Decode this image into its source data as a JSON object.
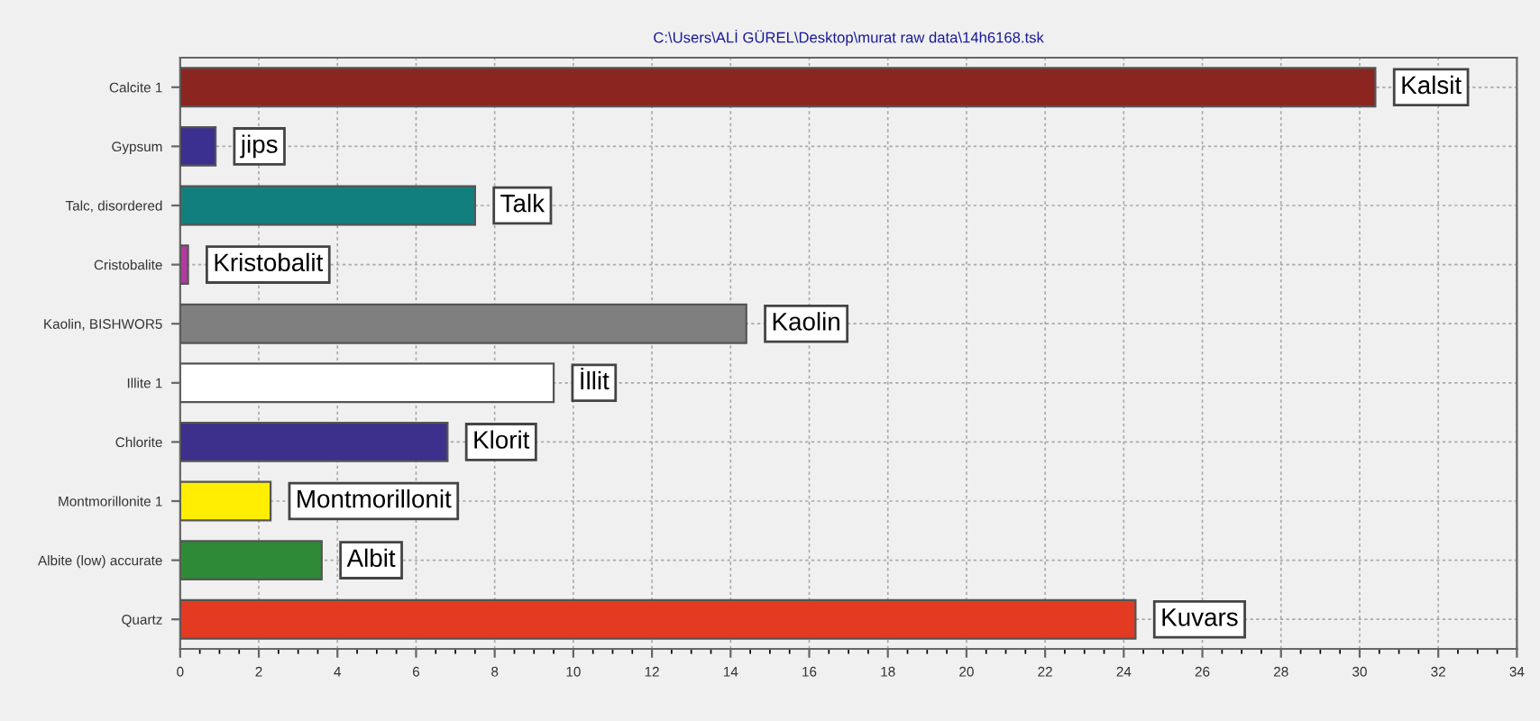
{
  "chart_data": {
    "type": "bar",
    "orientation": "horizontal",
    "title": "C:\\Users\\ALİ GÜREL\\Desktop\\murat raw data\\14h6168.tsk",
    "categories": [
      "Calcite 1",
      "Gypsum",
      "Talc, disordered",
      "Cristobalite",
      "Kaolin, BISHWOR5",
      "Illite 1",
      "Chlorite",
      "Montmorillonite 1",
      "Albite (low) accurate",
      "Quartz"
    ],
    "values": [
      30.4,
      0.9,
      7.5,
      0.2,
      14.4,
      9.5,
      6.8,
      2.3,
      3.6,
      24.3
    ],
    "colors": [
      "#8b2520",
      "#3b2f8f",
      "#127f7f",
      "#b03aa0",
      "#7f7f7f",
      "#ffffff",
      "#3d2f8c",
      "#ffee00",
      "#2f8a37",
      "#e23b22"
    ],
    "xlim": [
      0,
      34
    ],
    "xticks": [
      0,
      2,
      4,
      6,
      8,
      10,
      12,
      14,
      16,
      18,
      20,
      22,
      24,
      26,
      28,
      30,
      32,
      34
    ],
    "grid": true,
    "annotations": [
      "Kalsit",
      "jips",
      "Talk",
      "Kristobalit",
      "Kaolin",
      "İllit",
      "Klorit",
      "Montmorillonit",
      "Albit",
      "Kuvars"
    ]
  }
}
